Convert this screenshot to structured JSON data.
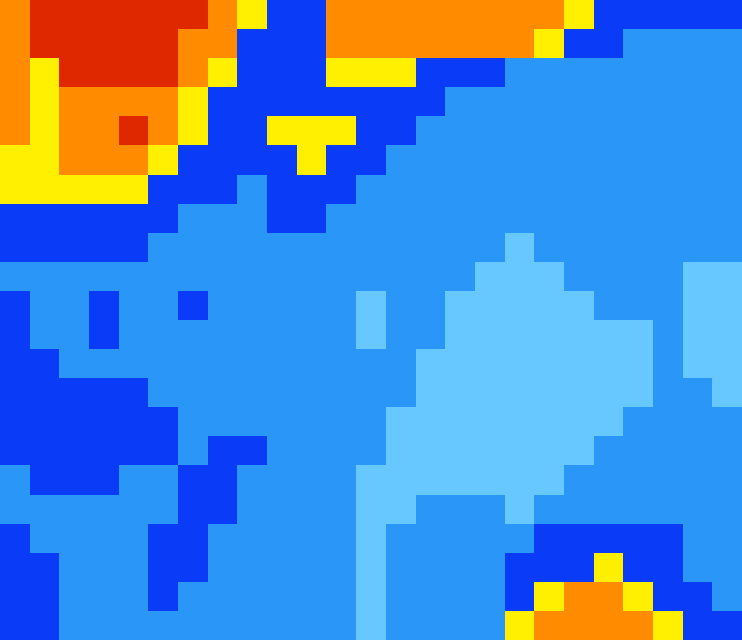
{
  "chart_data": {
    "type": "heatmap",
    "tick_labels": false,
    "colors": [
      "#66c8ff",
      "#2a96f8",
      "#0a3cf8",
      "#ffef00",
      "#ff8c00",
      "#e02800"
    ],
    "cells": [
      [
        4,
        5,
        5,
        5,
        5,
        5,
        5,
        4,
        3,
        2,
        2,
        4,
        4,
        4,
        4,
        4,
        4,
        4,
        4,
        3,
        2,
        2,
        2,
        2,
        2
      ],
      [
        4,
        5,
        5,
        5,
        5,
        5,
        4,
        4,
        2,
        2,
        2,
        4,
        4,
        4,
        4,
        4,
        4,
        4,
        3,
        2,
        2,
        1,
        1,
        1,
        1
      ],
      [
        4,
        3,
        5,
        5,
        5,
        5,
        4,
        3,
        2,
        2,
        2,
        3,
        3,
        3,
        2,
        2,
        2,
        1,
        1,
        1,
        1,
        1,
        1,
        1,
        1
      ],
      [
        4,
        3,
        4,
        4,
        4,
        4,
        3,
        2,
        2,
        2,
        2,
        2,
        2,
        2,
        2,
        1,
        1,
        1,
        1,
        1,
        1,
        1,
        1,
        1,
        1
      ],
      [
        4,
        3,
        4,
        4,
        5,
        4,
        3,
        2,
        2,
        3,
        3,
        3,
        2,
        2,
        1,
        1,
        1,
        1,
        1,
        1,
        1,
        1,
        1,
        1,
        1
      ],
      [
        3,
        3,
        4,
        4,
        4,
        3,
        2,
        2,
        2,
        2,
        3,
        2,
        2,
        1,
        1,
        1,
        1,
        1,
        1,
        1,
        1,
        1,
        1,
        1,
        1
      ],
      [
        3,
        3,
        3,
        3,
        3,
        2,
        2,
        2,
        1,
        2,
        2,
        2,
        1,
        1,
        1,
        1,
        1,
        1,
        1,
        1,
        1,
        1,
        1,
        1,
        1
      ],
      [
        2,
        2,
        2,
        2,
        2,
        2,
        1,
        1,
        1,
        2,
        2,
        1,
        1,
        1,
        1,
        1,
        1,
        1,
        1,
        1,
        1,
        1,
        1,
        1,
        1
      ],
      [
        2,
        2,
        2,
        2,
        2,
        1,
        1,
        1,
        1,
        1,
        1,
        1,
        1,
        1,
        1,
        1,
        1,
        0,
        1,
        1,
        1,
        1,
        1,
        1,
        1
      ],
      [
        1,
        1,
        1,
        1,
        1,
        1,
        1,
        1,
        1,
        1,
        1,
        1,
        1,
        1,
        1,
        1,
        0,
        0,
        0,
        1,
        1,
        1,
        1,
        0,
        0
      ],
      [
        2,
        1,
        1,
        2,
        1,
        1,
        2,
        1,
        1,
        1,
        1,
        1,
        0,
        1,
        1,
        0,
        0,
        0,
        0,
        0,
        1,
        1,
        1,
        0,
        0
      ],
      [
        2,
        1,
        1,
        2,
        1,
        1,
        1,
        1,
        1,
        1,
        1,
        1,
        0,
        1,
        1,
        0,
        0,
        0,
        0,
        0,
        0,
        0,
        1,
        0,
        0
      ],
      [
        2,
        2,
        1,
        1,
        1,
        1,
        1,
        1,
        1,
        1,
        1,
        1,
        1,
        1,
        0,
        0,
        0,
        0,
        0,
        0,
        0,
        0,
        1,
        0,
        0
      ],
      [
        2,
        2,
        2,
        2,
        2,
        1,
        1,
        1,
        1,
        1,
        1,
        1,
        1,
        1,
        0,
        0,
        0,
        0,
        0,
        0,
        0,
        0,
        1,
        1,
        0
      ],
      [
        2,
        2,
        2,
        2,
        2,
        2,
        1,
        1,
        1,
        1,
        1,
        1,
        1,
        0,
        0,
        0,
        0,
        0,
        0,
        0,
        0,
        1,
        1,
        1,
        1
      ],
      [
        2,
        2,
        2,
        2,
        2,
        2,
        1,
        2,
        2,
        1,
        1,
        1,
        1,
        0,
        0,
        0,
        0,
        0,
        0,
        0,
        1,
        1,
        1,
        1,
        1
      ],
      [
        1,
        2,
        2,
        2,
        1,
        1,
        2,
        2,
        1,
        1,
        1,
        1,
        0,
        0,
        0,
        0,
        0,
        0,
        0,
        1,
        1,
        1,
        1,
        1,
        1
      ],
      [
        1,
        1,
        1,
        1,
        1,
        1,
        2,
        2,
        1,
        1,
        1,
        1,
        0,
        0,
        1,
        1,
        1,
        0,
        1,
        1,
        1,
        1,
        1,
        1,
        1
      ],
      [
        2,
        1,
        1,
        1,
        1,
        2,
        2,
        1,
        1,
        1,
        1,
        1,
        0,
        1,
        1,
        1,
        1,
        1,
        2,
        2,
        2,
        2,
        2,
        1,
        1
      ],
      [
        2,
        2,
        1,
        1,
        1,
        2,
        2,
        1,
        1,
        1,
        1,
        1,
        0,
        1,
        1,
        1,
        1,
        2,
        2,
        2,
        3,
        2,
        2,
        1,
        1
      ],
      [
        2,
        2,
        1,
        1,
        1,
        2,
        1,
        1,
        1,
        1,
        1,
        1,
        0,
        1,
        1,
        1,
        1,
        2,
        3,
        4,
        4,
        3,
        2,
        2,
        1
      ],
      [
        2,
        2,
        1,
        1,
        1,
        1,
        1,
        1,
        1,
        1,
        1,
        1,
        0,
        1,
        1,
        1,
        1,
        3,
        4,
        4,
        4,
        4,
        3,
        2,
        2
      ]
    ]
  }
}
